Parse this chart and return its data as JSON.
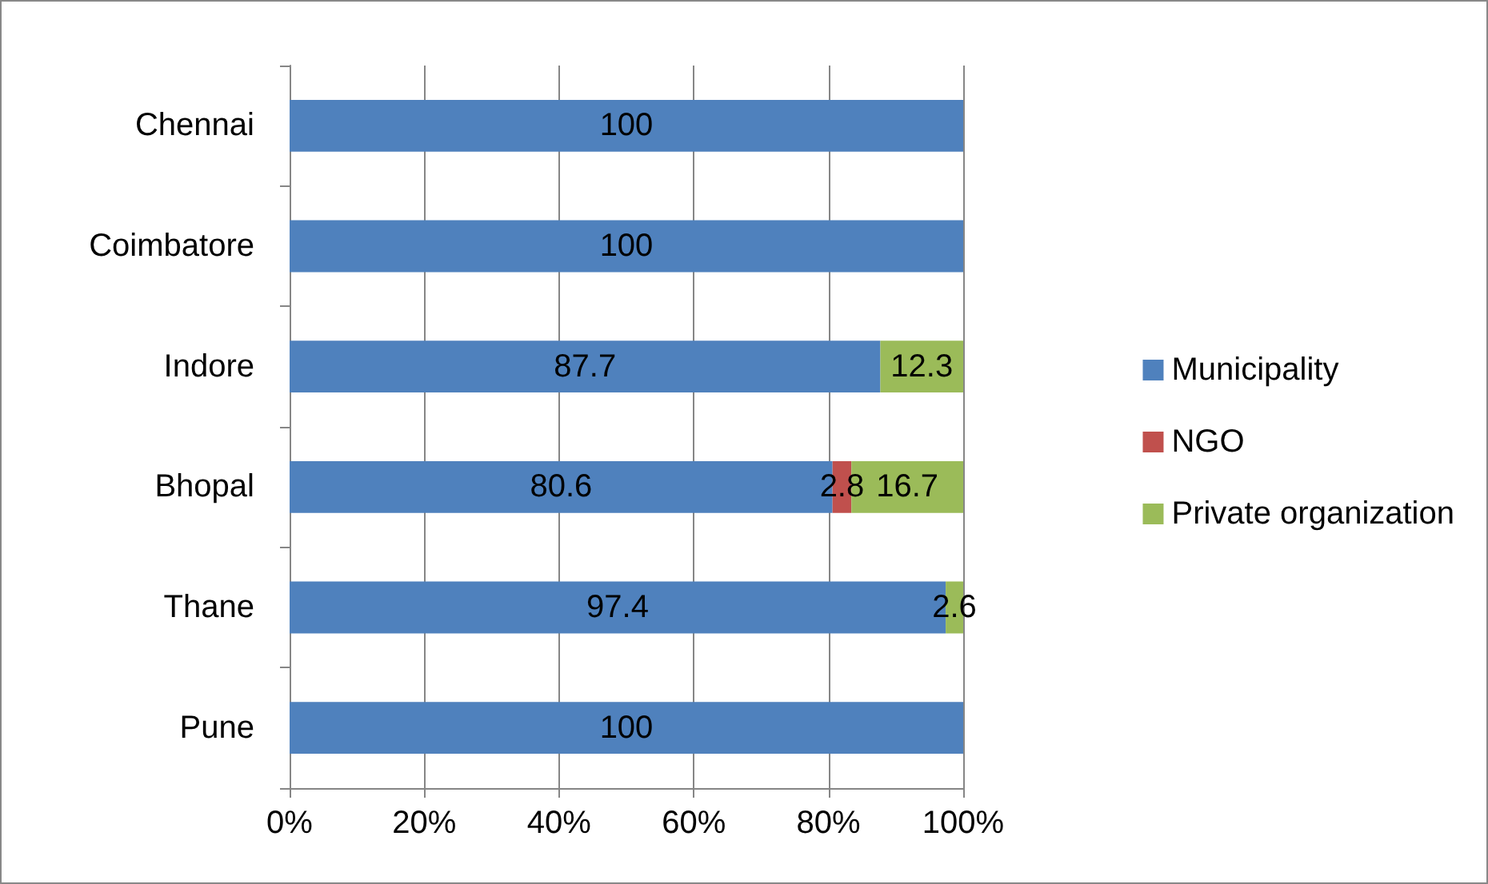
{
  "chart_data": {
    "type": "bar",
    "orientation": "horizontal",
    "stacked": true,
    "categories": [
      "Chennai",
      "Coimbatore",
      "Indore",
      "Bhopal",
      "Thane",
      "Pune"
    ],
    "series": [
      {
        "name": "Municipality",
        "color": "#4f81bd",
        "values": [
          100,
          100,
          87.7,
          80.6,
          97.4,
          100
        ]
      },
      {
        "name": "NGO",
        "color": "#c0504d",
        "values": [
          null,
          null,
          null,
          2.8,
          null,
          null
        ]
      },
      {
        "name": "Private organization",
        "color": "#9bbb59",
        "values": [
          null,
          null,
          12.3,
          16.7,
          2.6,
          null
        ]
      }
    ],
    "xlim": [
      0,
      100
    ],
    "xticks": [
      {
        "value": 0,
        "label": "0%"
      },
      {
        "value": 20,
        "label": "20%"
      },
      {
        "value": 40,
        "label": "40%"
      },
      {
        "value": 60,
        "label": "60%"
      },
      {
        "value": 80,
        "label": "80%"
      },
      {
        "value": 100,
        "label": "100%"
      }
    ],
    "grid": "x",
    "legend": "right",
    "data_labels": true
  }
}
